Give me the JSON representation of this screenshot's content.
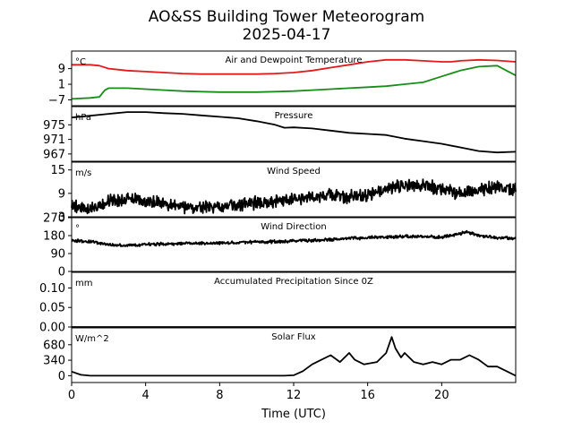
{
  "figure": {
    "title_line1": "AO&SS Building Tower Meteorogram",
    "title_line2": "2025-04-17",
    "xlabel": "Time (UTC)"
  },
  "chart_data": [
    {
      "type": "line",
      "title": "Air and Dewpoint Temperature",
      "ylabel": "°C",
      "xlim": [
        0,
        24
      ],
      "ylim": [
        -10,
        18
      ],
      "yticks": [
        "−7",
        "1",
        "9"
      ],
      "yticks_values": [
        -7,
        1,
        9
      ],
      "series": [
        {
          "color": "#e41a1c",
          "points": [
            [
              0,
              11
            ],
            [
              1,
              11
            ],
            [
              1.5,
              10.5
            ],
            [
              2,
              9
            ],
            [
              3,
              8
            ],
            [
              4,
              7.5
            ],
            [
              5,
              7
            ],
            [
              6,
              6.5
            ],
            [
              7,
              6.2
            ],
            [
              8,
              6.2
            ],
            [
              9,
              6.2
            ],
            [
              10,
              6.2
            ],
            [
              11,
              6.5
            ],
            [
              12,
              7
            ],
            [
              13,
              8
            ],
            [
              14,
              9.5
            ],
            [
              15,
              11
            ],
            [
              16,
              12.5
            ],
            [
              17,
              13.5
            ],
            [
              18,
              13.5
            ],
            [
              19,
              13
            ],
            [
              20,
              12.5
            ],
            [
              20.5,
              12.5
            ],
            [
              21,
              13
            ],
            [
              22,
              13.5
            ],
            [
              23,
              13.2
            ],
            [
              24,
              12.5
            ]
          ]
        },
        {
          "color": "#1a8c1a",
          "points": [
            [
              0,
              -6.5
            ],
            [
              1,
              -6
            ],
            [
              1.5,
              -5.5
            ],
            [
              1.8,
              -2
            ],
            [
              2,
              -1
            ],
            [
              3,
              -1
            ],
            [
              4,
              -1.5
            ],
            [
              5,
              -2
            ],
            [
              6,
              -2.5
            ],
            [
              7,
              -2.8
            ],
            [
              8,
              -3
            ],
            [
              9,
              -3
            ],
            [
              10,
              -3
            ],
            [
              11,
              -2.8
            ],
            [
              12,
              -2.5
            ],
            [
              13,
              -2
            ],
            [
              14,
              -1.5
            ],
            [
              15,
              -1
            ],
            [
              16,
              -0.5
            ],
            [
              17,
              0
            ],
            [
              18,
              1
            ],
            [
              19,
              2
            ],
            [
              20,
              5
            ],
            [
              21,
              8
            ],
            [
              22,
              10
            ],
            [
              23,
              10.5
            ],
            [
              23.5,
              8
            ],
            [
              24,
              5.5
            ]
          ]
        }
      ]
    },
    {
      "type": "line",
      "title": "Pressure",
      "ylabel": "hPa",
      "xlim": [
        0,
        24
      ],
      "ylim": [
        965,
        980
      ],
      "yticks": [
        "967",
        "971",
        "975"
      ],
      "yticks_values": [
        967,
        971,
        975
      ],
      "series": [
        {
          "color": "#000000",
          "points": [
            [
              0,
              977
            ],
            [
              1,
              977.5
            ],
            [
              2,
              978
            ],
            [
              3,
              978.5
            ],
            [
              4,
              978.5
            ],
            [
              5,
              978.2
            ],
            [
              6,
              978
            ],
            [
              7,
              977.6
            ],
            [
              8,
              977.2
            ],
            [
              9,
              976.8
            ],
            [
              10,
              976
            ],
            [
              11,
              975
            ],
            [
              11.5,
              974.2
            ],
            [
              12,
              974.3
            ],
            [
              13,
              974
            ],
            [
              14,
              973.4
            ],
            [
              15,
              972.8
            ],
            [
              16,
              972.5
            ],
            [
              17,
              972.2
            ],
            [
              18,
              971.2
            ],
            [
              19,
              970.5
            ],
            [
              20,
              969.8
            ],
            [
              21,
              968.8
            ],
            [
              22,
              967.8
            ],
            [
              23,
              967.4
            ],
            [
              24,
              967.6
            ]
          ]
        }
      ]
    },
    {
      "type": "line",
      "title": "Wind Speed",
      "ylabel": "m/s",
      "xlim": [
        0,
        24
      ],
      "ylim": [
        3,
        17
      ],
      "yticks": [
        "3",
        "9",
        "15"
      ],
      "yticks_values": [
        3,
        9,
        15
      ],
      "series": [
        {
          "color": "#000000",
          "noise": 1.3,
          "points": [
            [
              0,
              6
            ],
            [
              1,
              5
            ],
            [
              2,
              7
            ],
            [
              3,
              7.5
            ],
            [
              4,
              7
            ],
            [
              5,
              6.5
            ],
            [
              6,
              5.5
            ],
            [
              7,
              5.5
            ],
            [
              8,
              5.5
            ],
            [
              9,
              6
            ],
            [
              10,
              6.5
            ],
            [
              11,
              7
            ],
            [
              12,
              7.5
            ],
            [
              13,
              8
            ],
            [
              14,
              8.5
            ],
            [
              15,
              8
            ],
            [
              16,
              8.5
            ],
            [
              17,
              10
            ],
            [
              18,
              11
            ],
            [
              19,
              11
            ],
            [
              20,
              10
            ],
            [
              21,
              9
            ],
            [
              22,
              10
            ],
            [
              23,
              10.5
            ],
            [
              24,
              10
            ]
          ]
        }
      ]
    },
    {
      "type": "line",
      "title": "Wind Direction",
      "ylabel": "°",
      "xlim": [
        0,
        24
      ],
      "ylim": [
        0,
        270
      ],
      "yticks": [
        "0",
        "90",
        "180",
        "270"
      ],
      "yticks_values": [
        0,
        90,
        180,
        270
      ],
      "series": [
        {
          "color": "#000000",
          "noise": 6,
          "points": [
            [
              0,
              155
            ],
            [
              1,
              150
            ],
            [
              2,
              135
            ],
            [
              3,
              130
            ],
            [
              4,
              135
            ],
            [
              5,
              138
            ],
            [
              6,
              140
            ],
            [
              7,
              142
            ],
            [
              8,
              143
            ],
            [
              9,
              145
            ],
            [
              10,
              148
            ],
            [
              11,
              150
            ],
            [
              12,
              152
            ],
            [
              13,
              155
            ],
            [
              14,
              160
            ],
            [
              15,
              165
            ],
            [
              16,
              170
            ],
            [
              17,
              172
            ],
            [
              18,
              175
            ],
            [
              19,
              175
            ],
            [
              20,
              172
            ],
            [
              21,
              190
            ],
            [
              21.3,
              200
            ],
            [
              22,
              180
            ],
            [
              23,
              170
            ],
            [
              24,
              165
            ]
          ]
        }
      ]
    },
    {
      "type": "line",
      "title": "Accumulated Precipitation Since 0Z",
      "ylabel": "mm",
      "xlim": [
        0,
        24
      ],
      "ylim": [
        0,
        0.14
      ],
      "yticks": [
        "0.00",
        "0.05",
        "0.10"
      ],
      "yticks_values": [
        0,
        0.05,
        0.1
      ],
      "series": [
        {
          "color": "#000000",
          "points": [
            [
              0,
              0
            ],
            [
              24,
              0
            ]
          ]
        }
      ]
    },
    {
      "type": "line",
      "title": "Solar Flux",
      "ylabel": "W/m^2",
      "xlim": [
        0,
        24
      ],
      "ylim": [
        -150,
        1050
      ],
      "yticks": [
        "0",
        "340",
        "680"
      ],
      "yticks_values": [
        0,
        340,
        680
      ],
      "series": [
        {
          "color": "#000000",
          "points": [
            [
              0,
              90
            ],
            [
              0.5,
              20
            ],
            [
              1,
              0
            ],
            [
              11.5,
              0
            ],
            [
              12,
              10
            ],
            [
              12.5,
              100
            ],
            [
              13,
              250
            ],
            [
              13.5,
              350
            ],
            [
              14,
              450
            ],
            [
              14.5,
              300
            ],
            [
              15,
              500
            ],
            [
              15.3,
              350
            ],
            [
              15.8,
              250
            ],
            [
              16.5,
              300
            ],
            [
              17,
              500
            ],
            [
              17.3,
              850
            ],
            [
              17.5,
              600
            ],
            [
              17.8,
              400
            ],
            [
              18,
              500
            ],
            [
              18.5,
              300
            ],
            [
              19,
              250
            ],
            [
              19.5,
              300
            ],
            [
              20,
              250
            ],
            [
              20.5,
              350
            ],
            [
              21,
              350
            ],
            [
              21.5,
              450
            ],
            [
              22,
              350
            ],
            [
              22.5,
              200
            ],
            [
              23,
              200
            ],
            [
              23.5,
              100
            ],
            [
              24,
              0
            ]
          ]
        }
      ]
    }
  ],
  "xaxis": {
    "ticks": [
      "0",
      "4",
      "8",
      "12",
      "16",
      "20"
    ],
    "tick_values": [
      0,
      4,
      8,
      12,
      16,
      20
    ]
  }
}
